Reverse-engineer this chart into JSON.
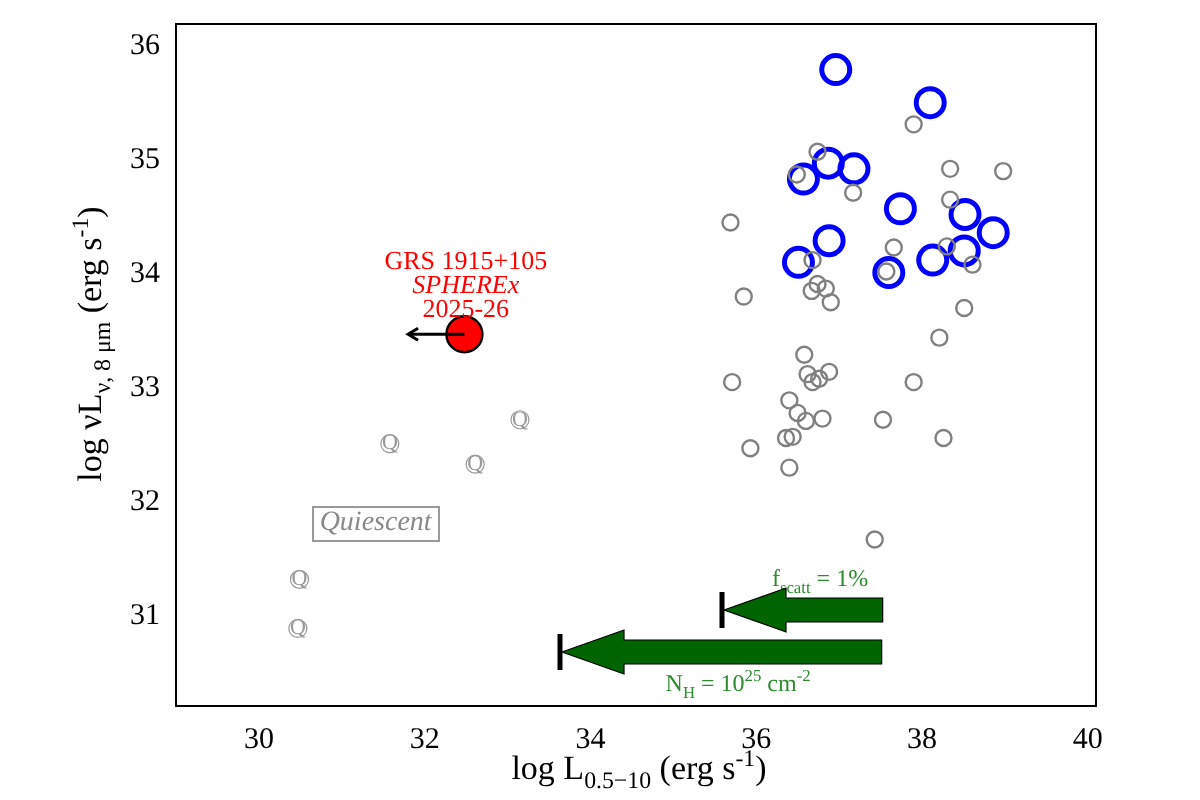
{
  "chart_data": {
    "type": "scatter",
    "xlabel": "log L$_{0.5−10}$ (erg s$^{-1}$)",
    "ylabel": "log νL$_{ν, 8 μm}$ (erg s$^{-1}$)",
    "xlim": [
      29,
      40.1
    ],
    "xticks": [
      30,
      32,
      34,
      36,
      38,
      40
    ],
    "ylim": [
      30.21,
      36.19
    ],
    "yticks": [
      31,
      32,
      33,
      34,
      35,
      36
    ],
    "grid": false,
    "legend": false,
    "series": [
      {
        "type": "scatter",
        "marker": "circle",
        "color": "#808080",
        "x": [
          37.9,
          36.74,
          36.49,
          38.34,
          38.98,
          37.17,
          38.34,
          35.69,
          37.66,
          38.3,
          38.61,
          36.68,
          36.74,
          36.84,
          36.67,
          36.9,
          35.85,
          37.57,
          38.51,
          38.21,
          36.58,
          36.62,
          36.88,
          36.68,
          36.76,
          35.71,
          37.9,
          36.4,
          36.5,
          36.6,
          36.8,
          37.53,
          35.93,
          36.36,
          36.44,
          38.26,
          36.4,
          37.43
        ],
        "values": [
          35.31,
          35.07,
          34.87,
          34.92,
          34.9,
          34.71,
          34.65,
          34.45,
          34.23,
          34.24,
          34.08,
          34.12,
          33.91,
          33.87,
          33.85,
          33.75,
          33.8,
          34.02,
          33.7,
          33.44,
          33.29,
          33.12,
          33.14,
          33.05,
          33.08,
          33.05,
          33.05,
          32.89,
          32.78,
          32.71,
          32.73,
          32.72,
          32.47,
          32.56,
          32.57,
          32.56,
          32.3,
          31.67
        ]
      },
      {
        "type": "scatter",
        "marker": "circle",
        "color": "#0000ff",
        "x": [
          36.96,
          38.1,
          36.87,
          37.18,
          36.57,
          37.74,
          38.52,
          38.86,
          36.88,
          38.51,
          38.13,
          36.51,
          37.6
        ],
        "values": [
          35.79,
          35.5,
          34.97,
          34.92,
          34.83,
          34.57,
          34.52,
          34.36,
          34.29,
          34.2,
          34.12,
          34.1,
          34.01
        ]
      },
      {
        "type": "scatter",
        "marker": "circle",
        "color": "#999999",
        "x": [
          33.15,
          31.58,
          32.61,
          30.49,
          30.47
        ],
        "values": [
          32.72,
          32.51,
          32.33,
          31.32,
          30.89
        ],
        "value_labels": [
          "Q",
          "Q",
          "Q",
          "Q",
          "Q"
        ]
      },
      {
        "type": "scatter",
        "marker": "circle",
        "color": "#ff0000",
        "x": [
          32.48
        ],
        "values": [
          33.47
        ],
        "xerrors": [
          [
            31.8,
            32.48
          ]
        ]
      }
    ],
    "annotations": [
      "GRS 1915+105",
      "SPHEREx",
      "2025-26",
      "Quiescent",
      "f$_{scatt}$ = 1%",
      "N$_{H}$ = 10$^{25}$ cm$^{-2}$"
    ]
  }
}
